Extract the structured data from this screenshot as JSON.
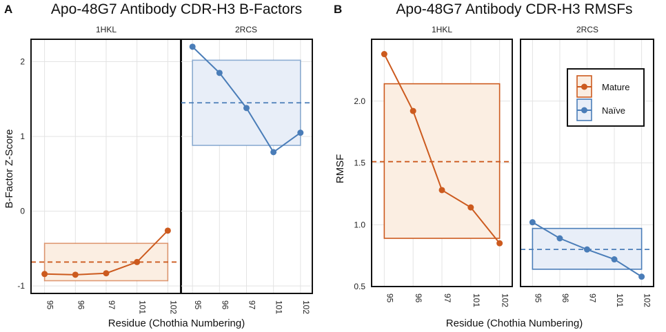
{
  "chart_data": [
    {
      "panel_letter": "A",
      "type": "line",
      "title": "Apo-48G7 Antibody CDR-H3 B-Factors",
      "xlabel": "Residue (Chothia Numbering)",
      "ylabel": "B-Factor Z-Score",
      "categories": [
        "95",
        "96",
        "97",
        "101",
        "102"
      ],
      "ylim": [
        -1.1,
        2.3
      ],
      "yticks": [
        -1,
        0,
        1,
        2
      ],
      "ytick_labels": [
        "-1",
        "0",
        "1",
        "2"
      ],
      "facets": [
        {
          "label": "1HKL",
          "series": "Mature",
          "color": "#cc5a1e",
          "fill": "#fbeee2",
          "values": [
            -0.84,
            -0.85,
            -0.83,
            -0.68,
            -0.26
          ],
          "mean": -0.68,
          "band": [
            -0.93,
            -0.43
          ]
        },
        {
          "label": "2RCS",
          "series": "Naïve",
          "color": "#4a7db8",
          "fill": "#e8eef8",
          "values": [
            2.2,
            1.85,
            1.38,
            0.79,
            1.05
          ],
          "mean": 1.45,
          "band": [
            0.88,
            2.02
          ]
        }
      ]
    },
    {
      "panel_letter": "B",
      "type": "line",
      "title": "Apo-48G7 Antibody CDR-H3 RMSFs",
      "xlabel": "Residue (Chothia Numbering)",
      "ylabel": "RMSF",
      "categories": [
        "95",
        "96",
        "97",
        "101",
        "102"
      ],
      "ylim": [
        0.5,
        2.5
      ],
      "yticks": [
        0.5,
        1.0,
        1.5,
        2.0
      ],
      "ytick_labels": [
        "0.5",
        "1.0",
        "1.5",
        "2.0"
      ],
      "legend": {
        "position": "top-right",
        "entries": [
          {
            "name": "Mature",
            "color": "#cc5a1e",
            "fill": "#fbeee2"
          },
          {
            "name": "Naïve",
            "color": "#4a7db8",
            "fill": "#e8eef8"
          }
        ]
      },
      "facets": [
        {
          "label": "1HKL",
          "series": "Mature",
          "color": "#cc5a1e",
          "fill": "#fbeee2",
          "values": [
            2.38,
            1.92,
            1.28,
            1.14,
            0.85
          ],
          "mean": 1.51,
          "band": [
            0.89,
            2.14
          ]
        },
        {
          "label": "2RCS",
          "series": "Naïve",
          "color": "#4a7db8",
          "fill": "#e8eef8",
          "values": [
            1.02,
            0.89,
            0.8,
            0.72,
            0.58
          ],
          "mean": 0.8,
          "band": [
            0.64,
            0.97
          ]
        }
      ]
    }
  ]
}
